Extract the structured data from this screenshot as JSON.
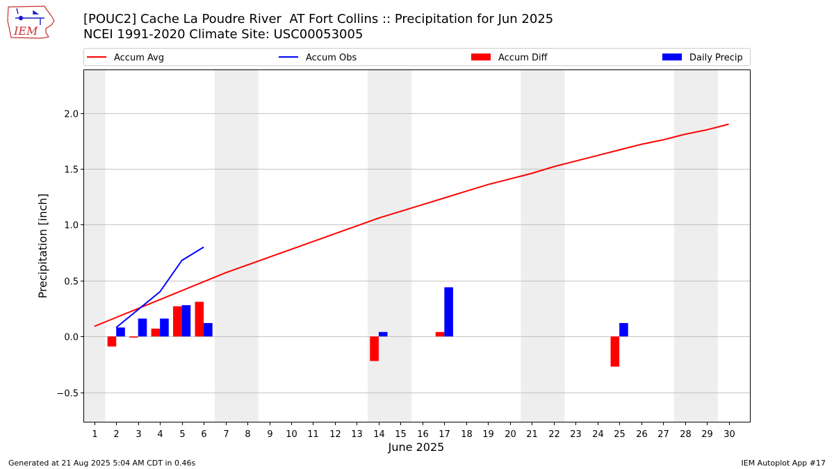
{
  "header": {
    "title": "[POUC2] Cache La Poudre River  AT Fort Collins :: Precipitation for Jun 2025",
    "subtitle": "NCEI 1991-2020 Climate Site: USC00053005",
    "logo_text": "IEM"
  },
  "footer": {
    "generated": "Generated at 21 Aug 2025 5:04 AM CDT in 0.46s",
    "app": "IEM Autoplot App #17"
  },
  "colors": {
    "avg": "#ff0000",
    "obs": "#0000ff",
    "diff": "#ff0000",
    "daily": "#0000ff",
    "weekend_shade": "#eeeeee",
    "grid": "#b0b0b0"
  },
  "chart_data": {
    "type": "bar",
    "xlabel": "June 2025",
    "ylabel": "Precipitation [inch]",
    "xlim": [
      0.5,
      31.0
    ],
    "ylim": [
      -0.77,
      2.39
    ],
    "yticks": [
      -0.5,
      0.0,
      0.5,
      1.0,
      1.5,
      2.0
    ],
    "ytick_labels": [
      "−0.5",
      "0.0",
      "0.5",
      "1.0",
      "1.5",
      "2.0"
    ],
    "xticks": [
      1,
      2,
      3,
      4,
      5,
      6,
      7,
      8,
      9,
      10,
      11,
      12,
      13,
      14,
      15,
      16,
      17,
      18,
      19,
      20,
      21,
      22,
      23,
      24,
      25,
      26,
      27,
      28,
      29,
      30
    ],
    "grid": "horizontal",
    "legend_position": "top, above plot",
    "shaded_day_ranges": [
      [
        0.5,
        1.5
      ],
      [
        6.5,
        8.5
      ],
      [
        13.5,
        15.5
      ],
      [
        20.5,
        22.5
      ],
      [
        27.5,
        29.5
      ]
    ],
    "series": [
      {
        "name": "Accum Avg",
        "kind": "line",
        "color": "#ff0000",
        "x": [
          1,
          2,
          3,
          4,
          5,
          6,
          7,
          8,
          9,
          10,
          11,
          12,
          13,
          14,
          15,
          16,
          17,
          18,
          19,
          20,
          21,
          22,
          23,
          24,
          25,
          26,
          27,
          28,
          29,
          30
        ],
        "values": [
          0.09,
          0.17,
          0.25,
          0.33,
          0.41,
          0.49,
          0.57,
          0.64,
          0.71,
          0.78,
          0.85,
          0.92,
          0.99,
          1.06,
          1.12,
          1.18,
          1.24,
          1.3,
          1.36,
          1.41,
          1.46,
          1.52,
          1.57,
          1.62,
          1.67,
          1.72,
          1.76,
          1.81,
          1.85,
          1.9
        ]
      },
      {
        "name": "Accum Obs",
        "kind": "line",
        "color": "#0000ff",
        "x": [
          2,
          3,
          4,
          5,
          6
        ],
        "values": [
          0.08,
          0.24,
          0.4,
          0.68,
          0.8
        ]
      },
      {
        "name": "Accum Diff",
        "kind": "bar",
        "color": "#ff0000",
        "offset": "left",
        "x": [
          2,
          3,
          4,
          5,
          6,
          14,
          17,
          25
        ],
        "values": [
          -0.09,
          -0.01,
          0.07,
          0.27,
          0.31,
          -0.22,
          0.04,
          -0.27
        ]
      },
      {
        "name": "Daily Precip",
        "kind": "bar",
        "color": "#0000ff",
        "offset": "right",
        "x": [
          2,
          3,
          4,
          5,
          6,
          14,
          17,
          25
        ],
        "values": [
          0.08,
          0.16,
          0.16,
          0.28,
          0.12,
          0.04,
          0.44,
          0.12
        ]
      }
    ]
  }
}
